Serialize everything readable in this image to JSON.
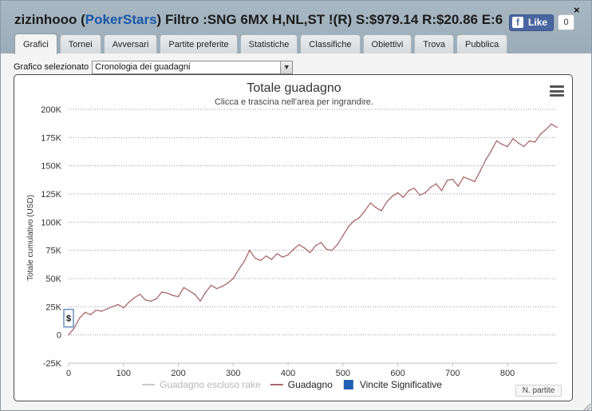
{
  "window": {
    "user": "zizinhooo",
    "site": "PokerStars",
    "filter_text": "Filtro :SNG 6MX H,NL,ST !(R) S:$979.14 R:$20.86 E:6",
    "close_glyph": "×"
  },
  "facebook": {
    "like_label": "Like",
    "like_count": "0",
    "icon": "facebook-icon"
  },
  "tabs": [
    {
      "label": "Grafici",
      "active": true
    },
    {
      "label": "Tornei",
      "active": false
    },
    {
      "label": "Avversari",
      "active": false
    },
    {
      "label": "Partite preferite",
      "active": false
    },
    {
      "label": "Statistiche",
      "active": false
    },
    {
      "label": "Classifiche",
      "active": false
    },
    {
      "label": "Obiettivi",
      "active": false
    },
    {
      "label": "Trova",
      "active": false
    },
    {
      "label": "Pubblica",
      "active": false
    }
  ],
  "selector": {
    "label": "Grafico selezionato",
    "value": "Cronologia dei guadagni",
    "arrow": "▼"
  },
  "chart_controls": {
    "menu_icon": "hamburger-menu-icon",
    "n_partite_label": "N. partite",
    "marker_label": "$"
  },
  "chart_data": {
    "type": "line",
    "title": "Totale guadagno",
    "subtitle": "Clicca e trascina nell'area per ingrandire.",
    "ylabel": "Totale cumulativo (USD)",
    "xlabel": "N. partite",
    "xlim": [
      0,
      890
    ],
    "ylim": [
      -25000,
      200000
    ],
    "x_ticks": [
      0,
      100,
      200,
      300,
      400,
      500,
      600,
      700,
      800
    ],
    "x_tick_labels": [
      "0",
      "100",
      "200",
      "300",
      "400",
      "500",
      "600",
      "700",
      "800"
    ],
    "y_ticks": [
      -25000,
      0,
      25000,
      50000,
      75000,
      100000,
      125000,
      150000,
      175000,
      200000
    ],
    "y_tick_labels": [
      "-25K",
      "0",
      "25K",
      "50K",
      "75K",
      "100K",
      "125K",
      "150K",
      "175K",
      "200K"
    ],
    "grid": "horizontal-dotted",
    "legend_position": "bottom-center",
    "legend": [
      {
        "name": "Guadagno escluso rake",
        "color": "#c8c8c8",
        "kind": "line"
      },
      {
        "name": "Guadagno",
        "color": "#a86a6e",
        "kind": "line"
      },
      {
        "name": "Vincite Significative",
        "color": "#1f5fb4",
        "kind": "box"
      }
    ],
    "series": [
      {
        "name": "Guadagno",
        "color": "#a86a6e",
        "x": [
          0,
          10,
          20,
          30,
          40,
          50,
          60,
          70,
          80,
          90,
          100,
          110,
          120,
          130,
          140,
          150,
          160,
          170,
          180,
          190,
          200,
          210,
          220,
          230,
          240,
          250,
          260,
          270,
          280,
          290,
          300,
          310,
          320,
          330,
          340,
          350,
          360,
          370,
          380,
          390,
          400,
          410,
          420,
          430,
          440,
          450,
          460,
          470,
          480,
          490,
          500,
          510,
          520,
          530,
          540,
          550,
          560,
          570,
          580,
          590,
          600,
          610,
          620,
          630,
          640,
          650,
          660,
          670,
          680,
          690,
          700,
          710,
          720,
          730,
          740,
          750,
          760,
          770,
          780,
          790,
          800,
          810,
          820,
          830,
          840,
          850,
          860,
          870,
          880,
          890
        ],
        "y": [
          0,
          6000,
          15000,
          20000,
          18000,
          22000,
          21000,
          23000,
          25000,
          27000,
          24000,
          29000,
          33000,
          36000,
          31000,
          30000,
          32000,
          38000,
          37000,
          35000,
          34000,
          42000,
          39000,
          36000,
          30000,
          38000,
          44000,
          41000,
          43000,
          46000,
          50000,
          58000,
          65000,
          75000,
          68000,
          66000,
          70000,
          67000,
          72000,
          69000,
          71000,
          76000,
          80000,
          77000,
          73000,
          79000,
          82000,
          76000,
          75000,
          80000,
          88000,
          96000,
          101000,
          104000,
          110000,
          117000,
          113000,
          110000,
          118000,
          123000,
          126000,
          122000,
          128000,
          130000,
          124000,
          126000,
          131000,
          134000,
          128000,
          137000,
          138000,
          132000,
          140000,
          138000,
          136000,
          145000,
          155000,
          163000,
          172000,
          169000,
          167000,
          174000,
          170000,
          167000,
          172000,
          171000,
          178000,
          182000,
          187000,
          184000
        ]
      }
    ]
  }
}
